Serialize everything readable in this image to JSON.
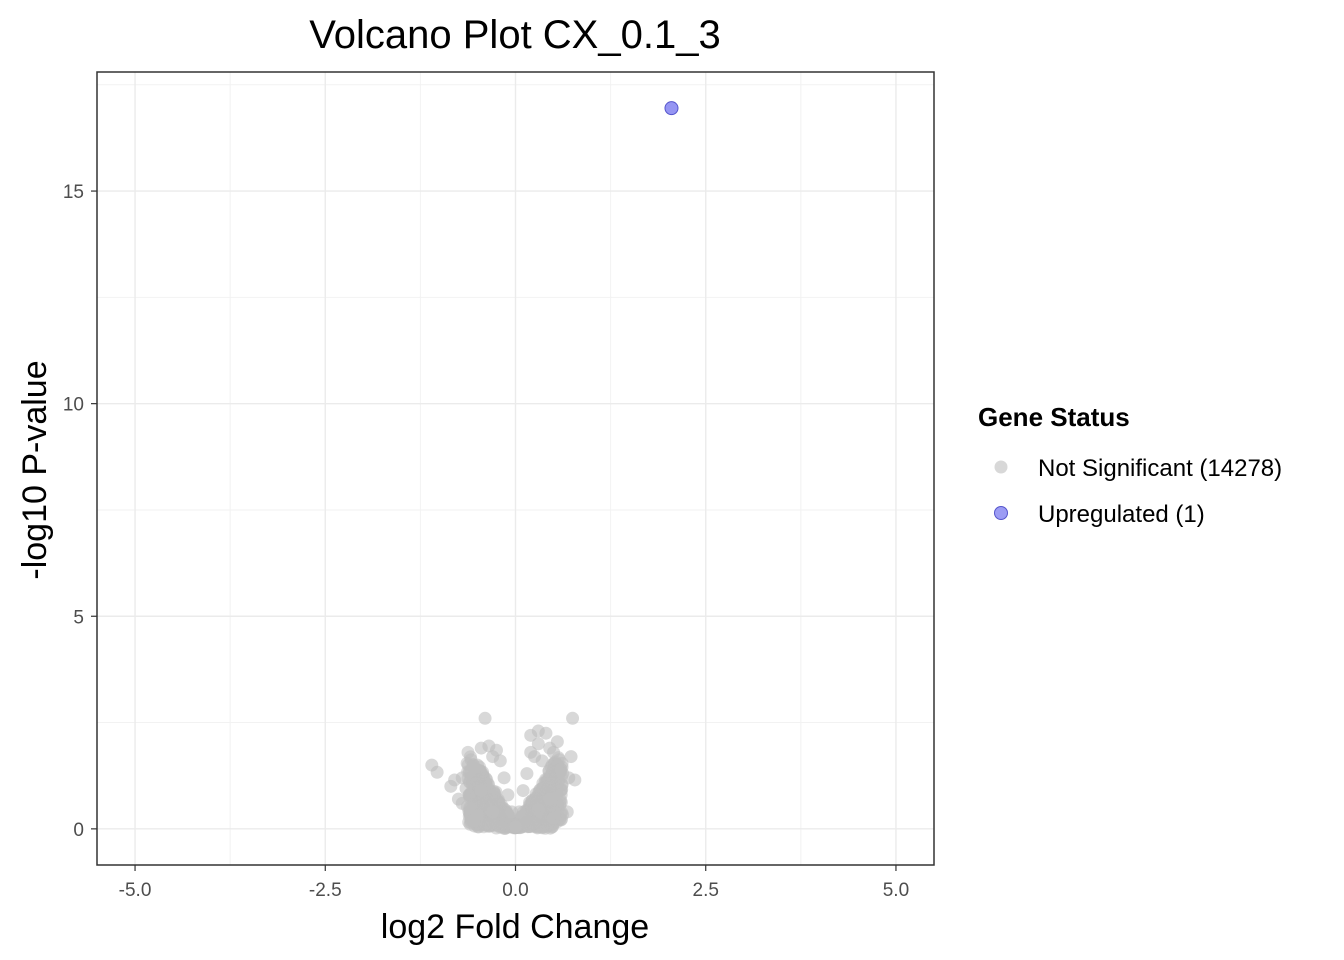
{
  "chart_data": {
    "type": "scatter",
    "title": "Volcano Plot CX_0.1_3",
    "xlabel": "log2 Fold Change",
    "ylabel": "-log10 P-value",
    "xlim": [
      -5.5,
      5.5
    ],
    "ylim": [
      -0.85,
      17.8
    ],
    "x_ticks": [
      -5.0,
      -2.5,
      0.0,
      2.5,
      5.0
    ],
    "x_tick_labels": [
      "-5.0",
      "-2.5",
      "0.0",
      "2.5",
      "5.0"
    ],
    "y_ticks": [
      0,
      5,
      10,
      15
    ],
    "y_tick_labels": [
      "0",
      "5",
      "10",
      "15"
    ],
    "grid": true,
    "legend": {
      "title": "Gene Status",
      "position": "right",
      "entries": [
        {
          "label": "Not Significant (14278)",
          "color": "#bebebe"
        },
        {
          "label": "Upregulated (1)",
          "color": "#7b7bf0"
        }
      ]
    },
    "series": [
      {
        "name": "Not Significant (14278)",
        "color": "#bebebe",
        "points": [
          [
            -1.1,
            1.5
          ],
          [
            -1.03,
            1.33
          ],
          [
            -0.85,
            1.0
          ],
          [
            -0.8,
            1.15
          ],
          [
            -0.75,
            0.7
          ],
          [
            -0.7,
            1.2
          ],
          [
            -0.65,
            0.95
          ],
          [
            -0.6,
            0.5
          ],
          [
            -0.6,
            1.35
          ],
          [
            -0.55,
            1.45
          ],
          [
            -0.5,
            0.3
          ],
          [
            -0.5,
            1.5
          ],
          [
            -0.45,
            1.9
          ],
          [
            -0.4,
            2.6
          ],
          [
            -0.35,
            1.95
          ],
          [
            -0.3,
            1.7
          ],
          [
            -0.25,
            1.85
          ],
          [
            -0.2,
            1.6
          ],
          [
            -0.15,
            1.2
          ],
          [
            -0.1,
            0.8
          ],
          [
            -0.05,
            0.4
          ],
          [
            0.0,
            0.05
          ],
          [
            0.05,
            0.4
          ],
          [
            0.1,
            0.9
          ],
          [
            0.15,
            1.3
          ],
          [
            0.2,
            1.8
          ],
          [
            0.2,
            2.2
          ],
          [
            0.25,
            1.7
          ],
          [
            0.3,
            2.0
          ],
          [
            0.3,
            2.3
          ],
          [
            0.35,
            1.6
          ],
          [
            0.4,
            2.25
          ],
          [
            0.45,
            1.9
          ],
          [
            0.5,
            1.8
          ],
          [
            0.55,
            2.05
          ],
          [
            0.6,
            1.4
          ],
          [
            0.62,
            1.3
          ],
          [
            0.68,
            0.4
          ],
          [
            0.7,
            1.2
          ],
          [
            0.73,
            1.7
          ],
          [
            0.75,
            2.6
          ],
          [
            0.78,
            1.15
          ],
          [
            0.6,
            0.8
          ],
          [
            -0.7,
            0.6
          ],
          [
            -0.45,
            0.9
          ],
          [
            0.45,
            0.7
          ],
          [
            -0.3,
            0.4
          ],
          [
            0.3,
            0.45
          ],
          [
            -0.55,
            0.2
          ],
          [
            0.5,
            0.25
          ]
        ]
      },
      {
        "name": "Upregulated (1)",
        "color": "#7b7bf0",
        "points": [
          [
            2.05,
            16.95
          ]
        ]
      }
    ]
  }
}
